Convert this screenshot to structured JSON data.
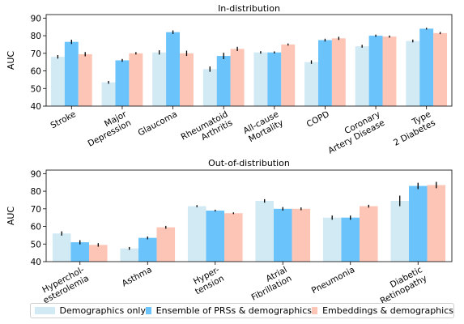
{
  "colors": {
    "demographics": "#d2eaf4",
    "prs": "#6ac3fb",
    "embeddings": "#fcc5b5",
    "error": "#000000",
    "axis": "#000000"
  },
  "chart_data": [
    {
      "type": "bar",
      "title": "In-distribution",
      "ylabel": "AUC",
      "ylim": [
        40,
        92
      ],
      "yticks": [
        40,
        50,
        60,
        70,
        80,
        90
      ],
      "categories": [
        [
          "Stroke"
        ],
        [
          "Major",
          "Depression"
        ],
        [
          "Glaucoma"
        ],
        [
          "Rheumatoid",
          "Arthritis"
        ],
        [
          "All-cause",
          "Mortality"
        ],
        [
          "COPD"
        ],
        [
          "Coronary",
          "Artery Disease"
        ],
        [
          "Type",
          "2 Diabetes"
        ]
      ],
      "series": [
        {
          "name": "Demographics only",
          "values": [
            68.0,
            53.5,
            70.5,
            61.0,
            70.5,
            65.0,
            74.0,
            77.0
          ],
          "errors": [
            1.0,
            0.8,
            1.2,
            1.5,
            0.7,
            1.0,
            0.8,
            0.8
          ]
        },
        {
          "name": "Ensemble of PRSs & demographics",
          "values": [
            76.5,
            66.0,
            82.0,
            68.5,
            70.5,
            77.5,
            80.0,
            84.0
          ],
          "errors": [
            1.2,
            0.8,
            1.0,
            1.8,
            0.6,
            0.8,
            0.6,
            0.5
          ]
        },
        {
          "name": "Embeddings & demographics",
          "values": [
            69.5,
            70.0,
            70.0,
            72.5,
            75.0,
            78.5,
            79.5,
            81.5
          ],
          "errors": [
            1.2,
            0.7,
            1.5,
            1.2,
            0.6,
            0.9,
            0.6,
            0.6
          ]
        }
      ]
    },
    {
      "type": "bar",
      "title": "Out-of-distribution",
      "ylabel": "AUC",
      "ylim": [
        40,
        92
      ],
      "yticks": [
        40,
        50,
        60,
        70,
        80,
        90
      ],
      "categories": [
        [
          "Hyperchol-",
          "esterolemia"
        ],
        [
          "Asthma"
        ],
        [
          "Hyper-",
          "tension"
        ],
        [
          "Atrial",
          "Fibrillation"
        ],
        [
          "Pneumonia"
        ],
        [
          "Diabetic",
          "Retinopathy"
        ]
      ],
      "series": [
        {
          "name": "Demographics only",
          "values": [
            56.0,
            47.5,
            71.5,
            74.5,
            65.0,
            74.5
          ],
          "errors": [
            1.2,
            0.8,
            0.6,
            1.0,
            1.2,
            3.0
          ]
        },
        {
          "name": "Ensemble of PRSs & demographics",
          "values": [
            51.0,
            53.5,
            69.0,
            70.0,
            65.0,
            83.0
          ],
          "errors": [
            1.2,
            0.8,
            0.5,
            1.0,
            1.2,
            1.8
          ]
        },
        {
          "name": "Embeddings & demographics",
          "values": [
            49.5,
            59.5,
            67.5,
            70.0,
            71.5,
            83.5
          ],
          "errors": [
            1.0,
            0.8,
            0.5,
            0.8,
            0.8,
            1.8
          ]
        }
      ]
    }
  ]
}
